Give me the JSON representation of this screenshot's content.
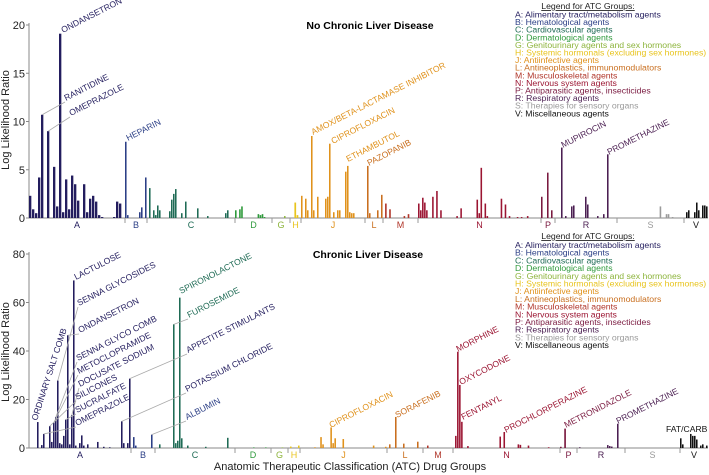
{
  "chart_data": [
    {
      "type": "bar",
      "title": "No Chronic Liver Disease",
      "ylabel": "Log Likelihood Ratio",
      "xlabel": "",
      "ylim": [
        0,
        20
      ],
      "yticks": [
        0,
        5,
        10,
        15,
        20
      ],
      "grid": false,
      "legend_placement": "top-right",
      "groups": [
        {
          "id": "A",
          "values": [
            2.3,
            0.9,
            0.5,
            4.2,
            10.7,
            0,
            9,
            0,
            5.3,
            1.2,
            19.1,
            0.6,
            4,
            0.9,
            4.4,
            3.5,
            1.8,
            0,
            3.5,
            0.6,
            2,
            2.3,
            1.7,
            0.3,
            0.1,
            0,
            0,
            0,
            0.1,
            1.7,
            1.5,
            0
          ]
        },
        {
          "id": "B",
          "values": [
            7.9,
            0.3,
            0,
            0,
            0,
            0,
            0,
            0.6,
            1.1,
            0,
            4.2
          ]
        },
        {
          "id": "C",
          "values": [
            0,
            3.1,
            0,
            0.8,
            0.3,
            1.3,
            0.8,
            0,
            0,
            0,
            0,
            0.7,
            1.9,
            2.5,
            3,
            0,
            0,
            0.5,
            0,
            1.7,
            0,
            0,
            0,
            0,
            0,
            1,
            0,
            0,
            0,
            0,
            0.2,
            0,
            0,
            0,
            0,
            0,
            0,
            0,
            0,
            0.5,
            0.8,
            0,
            0,
            0
          ]
        },
        {
          "id": "D",
          "values": [
            0.8,
            0,
            0.9,
            1.2,
            0,
            0,
            0,
            0,
            0,
            0,
            0,
            0.4,
            0.3,
            0.4,
            0.1,
            0,
            0,
            0
          ]
        },
        {
          "id": "G",
          "values": [
            0,
            0,
            0,
            0,
            0,
            0,
            0.2,
            0,
            0
          ]
        },
        {
          "id": "H",
          "values": [
            0,
            0,
            1.6,
            0.3,
            0
          ]
        },
        {
          "id": "J",
          "values": [
            2.3,
            0,
            2,
            0.8,
            0,
            8.5,
            0.8,
            0,
            2.2,
            0,
            0,
            0,
            2,
            2.2,
            7.7,
            0,
            0.6,
            0,
            0.8,
            0.8,
            0,
            0,
            4.8,
            5.4,
            0.6,
            0.5,
            0.5,
            0,
            0,
            0,
            0,
            0
          ]
        },
        {
          "id": "L",
          "values": [
            0,
            5.4,
            0.5,
            0,
            0,
            0,
            0.8,
            0,
            2.4
          ]
        },
        {
          "id": "M",
          "values": [
            0,
            1.5,
            0,
            0.9,
            0,
            0,
            0,
            0,
            0,
            0,
            0.2,
            0,
            0.4,
            0,
            0,
            0,
            0
          ]
        },
        {
          "id": "N",
          "values": [
            1.5,
            0.8,
            2.1,
            1.6,
            0.8,
            0,
            0,
            2.2,
            0,
            2.8,
            0,
            0.8,
            0,
            0,
            0,
            0,
            0,
            0,
            0,
            0.2,
            0,
            1,
            0,
            0,
            0,
            0,
            0,
            0,
            0,
            1.9,
            0.5,
            5.2,
            0,
            1.5,
            0.2,
            0,
            0,
            0,
            0,
            0,
            0,
            2,
            0,
            1.4,
            0,
            0.2,
            0,
            0,
            0,
            0.1,
            0,
            0.1,
            0,
            0,
            0.2,
            0,
            0,
            0,
            0,
            0,
            0
          ]
        },
        {
          "id": "P",
          "values": [
            2.2,
            0,
            0,
            4.7,
            0,
            0.8,
            0
          ]
        },
        {
          "id": "R",
          "values": [
            0,
            0,
            0,
            7.3,
            0,
            0.2,
            0,
            0,
            1.2,
            1.3,
            0,
            0,
            0,
            0,
            0,
            2.2,
            1.4,
            0,
            0,
            0,
            0,
            0.2,
            0,
            0,
            0.4,
            0,
            6.6,
            0,
            0,
            0,
            0
          ]
        },
        {
          "id": "S",
          "values": [
            0,
            0,
            0,
            0,
            0,
            0,
            0,
            0,
            0,
            0,
            0,
            0,
            0,
            0,
            0,
            0,
            0,
            0,
            0,
            0,
            0,
            1.2,
            0,
            0,
            0.4,
            0.4,
            0,
            0.1,
            0,
            0,
            0,
            0,
            0
          ]
        },
        {
          "id": "V",
          "values": [
            0,
            0.6,
            0.8,
            0,
            0,
            0.6,
            1.6,
            0.8,
            0,
            1.3,
            1.3,
            1.2
          ]
        }
      ],
      "annotations": [
        {
          "text": "ONDANSETRON",
          "group": "A",
          "bar": 10
        },
        {
          "text": "RANITIDINE",
          "group": "A",
          "bar": 4
        },
        {
          "text": "OMEPRAZOLE",
          "group": "A",
          "bar": 6
        },
        {
          "text": "HEPARIN",
          "group": "B",
          "bar": 0
        },
        {
          "text": "AMOX/BETA-LACTAMASE INHIBITOR",
          "group": "J",
          "bar": 5
        },
        {
          "text": "CIPROFLOXACIN",
          "group": "J",
          "bar": 14
        },
        {
          "text": "ETHAMBUTOL",
          "group": "J",
          "bar": 23
        },
        {
          "text": "PAZOPANIB",
          "group": "L",
          "bar": 1
        },
        {
          "text": "MUPIROCIN",
          "group": "R",
          "bar": 3
        },
        {
          "text": "PROMETHAZINE",
          "group": "R",
          "bar": 26
        }
      ]
    },
    {
      "type": "bar",
      "title": "Chronic Liver Disease",
      "ylabel": "Log Likelihood Ratio",
      "xlabel": "Anatomic Therapeutic Classification (ATC) Drug Groups",
      "ylim": [
        0,
        80
      ],
      "yticks": [
        0,
        20,
        40,
        60,
        80
      ],
      "grid": false,
      "legend_placement": "top-right",
      "groups": [
        {
          "id": "A",
          "values": [
            0,
            0,
            0,
            0,
            10.7,
            0,
            1.2,
            5.8,
            0,
            0,
            9,
            2.5,
            10.5,
            12.7,
            27.8,
            2,
            1.5,
            5,
            11.7,
            46.5,
            1.5,
            13.5,
            69.1,
            1,
            0,
            2,
            5.2,
            1,
            0,
            1.5,
            0,
            0,
            0,
            0,
            2.5,
            0,
            0,
            0.5,
            0,
            0,
            0.3,
            0,
            0,
            0,
            0,
            0,
            11,
            2,
            0,
            2,
            28.6
          ]
        },
        {
          "id": "B",
          "values": [
            0,
            4.5,
            1,
            0,
            0,
            0,
            0,
            0,
            0,
            0,
            5.5,
            0
          ]
        },
        {
          "id": "C",
          "values": [
            0,
            0,
            1.5,
            0,
            0,
            0,
            0,
            0,
            0,
            51,
            2,
            3,
            62,
            4,
            0,
            0,
            1,
            0,
            0,
            0,
            0,
            0,
            0,
            0,
            0,
            0.5,
            0,
            0,
            0,
            0,
            0,
            0,
            0,
            0,
            0,
            0,
            4.2,
            0,
            0,
            0
          ]
        },
        {
          "id": "D",
          "values": [
            0,
            0,
            0,
            0,
            0,
            0,
            0,
            0,
            0,
            0.2,
            0,
            0,
            0,
            0,
            0,
            0.2,
            0,
            0
          ]
        },
        {
          "id": "G",
          "values": [
            0,
            0,
            0,
            0,
            0,
            0.1,
            0,
            0
          ]
        },
        {
          "id": "H",
          "values": [
            0,
            0.6,
            0,
            0,
            0,
            1
          ]
        },
        {
          "id": "J",
          "values": [
            0,
            0,
            0,
            0,
            0,
            0,
            0,
            0.3,
            0,
            0,
            4.5,
            1.5,
            0,
            0,
            0,
            8.5,
            2,
            4,
            0,
            0,
            0,
            3.7,
            0,
            0,
            0,
            0,
            0,
            0,
            0,
            0,
            0,
            0,
            0,
            0,
            0,
            0,
            1,
            0,
            0,
            0,
            0,
            0,
            0.5
          ]
        },
        {
          "id": "L",
          "values": [
            0,
            1.5,
            0,
            0,
            12.8,
            0,
            0,
            0,
            1.8,
            0,
            0,
            0,
            0,
            0,
            0,
            2.6,
            0,
            0
          ]
        },
        {
          "id": "M",
          "values": [
            0,
            0,
            1,
            0,
            0,
            0,
            0,
            0,
            0,
            0,
            0,
            0,
            0,
            0,
            0
          ]
        },
        {
          "id": "N",
          "values": [
            0,
            5,
            39.7,
            26,
            10.8,
            0,
            0,
            0.8,
            0,
            0,
            0,
            0,
            0,
            0,
            0,
            0,
            0,
            0,
            0,
            0,
            0,
            0,
            0,
            4.7,
            0,
            6.6,
            0,
            0,
            0,
            0,
            0,
            0,
            1.5,
            1.3,
            0,
            0,
            0,
            1,
            0,
            0,
            0,
            0,
            0,
            0,
            0,
            0,
            0,
            0.3,
            0,
            0,
            0,
            0,
            0
          ]
        },
        {
          "id": "P",
          "values": [
            0.5,
            0,
            8,
            0,
            0,
            0,
            0,
            0
          ]
        },
        {
          "id": "R",
          "values": [
            0,
            0.3,
            0,
            0,
            0,
            0,
            0,
            0,
            0,
            0,
            0,
            0,
            0,
            0,
            0,
            1.2,
            0.8,
            0.6,
            0,
            0,
            10,
            0,
            0,
            0
          ]
        },
        {
          "id": "S",
          "values": [
            0,
            0,
            0,
            0,
            0,
            0,
            0,
            0,
            0,
            0,
            0,
            0,
            0,
            0,
            0,
            0,
            0,
            0,
            0,
            0,
            0,
            0,
            0,
            0,
            0,
            0,
            0
          ]
        },
        {
          "id": "V",
          "values": [
            4,
            1.5,
            0,
            0,
            0,
            5.8,
            5,
            5,
            3.5,
            0,
            1,
            1.5,
            0,
            1
          ]
        }
      ],
      "annotations": [
        {
          "text": "ORDINARY SALT COMB",
          "group": "A",
          "bar": 4
        },
        {
          "text": "LACTULOSE",
          "group": "A",
          "bar": 22
        },
        {
          "text": "SENNA GLYCOSIDES",
          "group": "A",
          "bar": 14
        },
        {
          "text": "ONDANSETRON",
          "group": "A",
          "bar": 19
        },
        {
          "text": "SENNA GLYCO COMB",
          "group": "A",
          "bar": 13
        },
        {
          "text": "METOCLOPRAMIDE",
          "group": "A",
          "bar": 12
        },
        {
          "text": "DOCUSATE SODIUM",
          "group": "A",
          "bar": 21
        },
        {
          "text": "SILICONES",
          "group": "A",
          "bar": 10
        },
        {
          "text": "SUCRALFATE",
          "group": "A",
          "bar": 18
        },
        {
          "text": "OMEPRAZOLE",
          "group": "A",
          "bar": 7
        },
        {
          "text": "APPETITE STIMULANTS",
          "group": "A",
          "bar": 50
        },
        {
          "text": "POTASSIUM CHLORIDE",
          "group": "A",
          "bar": 46
        },
        {
          "text": "ALBUMIN",
          "group": "B",
          "bar": 10
        },
        {
          "text": "SPIRONOLACTONE",
          "group": "C",
          "bar": 12
        },
        {
          "text": "FUROSEMIDE",
          "group": "C",
          "bar": 9
        },
        {
          "text": "CIPROFLOXACIN",
          "group": "J",
          "bar": 15
        },
        {
          "text": "SORAFENIB",
          "group": "L",
          "bar": 4
        },
        {
          "text": "MORPHINE",
          "group": "N",
          "bar": 2
        },
        {
          "text": "OXYCODONE",
          "group": "N",
          "bar": 3
        },
        {
          "text": "FENTANYL",
          "group": "N",
          "bar": 4
        },
        {
          "text": "PROCHLORPERAZINE",
          "group": "N",
          "bar": 25
        },
        {
          "text": "METRONIDAZOLE",
          "group": "P",
          "bar": 2
        },
        {
          "text": "PROMETHAZINE",
          "group": "R",
          "bar": 20
        },
        {
          "text": "FAT/CARB",
          "group": "V",
          "bar": 5
        }
      ]
    }
  ],
  "legend": {
    "title": "Legend for ATC Groups:",
    "items": [
      {
        "id": "A",
        "text": "A: Alimentary tract/metabolism agents",
        "color": "#231d5e"
      },
      {
        "id": "B",
        "text": "B: Hematological agents",
        "color": "#2c3f86"
      },
      {
        "id": "C",
        "text": "C: Cardiovascular agents",
        "color": "#1f6b55"
      },
      {
        "id": "D",
        "text": "D: Dermatological agents",
        "color": "#2f9a3c"
      },
      {
        "id": "G",
        "text": "G: Genitourinary agents and sex hormones",
        "color": "#8db43c"
      },
      {
        "id": "H",
        "text": "H: Systemic hormonals (excluding sex hormones)",
        "color": "#e8c41e"
      },
      {
        "id": "J",
        "text": "J: Antiinfective agents",
        "color": "#e0921c"
      },
      {
        "id": "L",
        "text": "L: Antineoplastics, immunomodulators",
        "color": "#c96f1f"
      },
      {
        "id": "M",
        "text": "M: Musculoskeletal agents",
        "color": "#b0362a"
      },
      {
        "id": "N",
        "text": "N: Nervous system agents",
        "color": "#9b1532"
      },
      {
        "id": "P",
        "text": "P: Antiparasitic agents, insecticides",
        "color": "#7a1a40"
      },
      {
        "id": "R",
        "text": "R: Respiratory agents",
        "color": "#4b1f52"
      },
      {
        "id": "S",
        "text": "S: Therapies for sensory organs",
        "color": "#9a9a9a"
      },
      {
        "id": "V",
        "text": "V: Miscellaneous agents",
        "color": "#111111"
      }
    ]
  }
}
